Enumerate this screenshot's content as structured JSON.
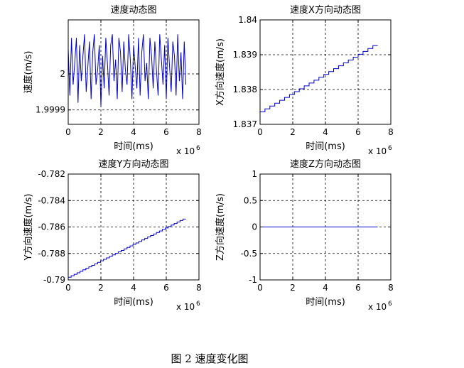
{
  "caption": "图 2 速度变化图",
  "chart_data": [
    {
      "type": "line",
      "title": "速度动态图",
      "xlabel": "时间(ms)",
      "ylabel": "速度(m/s)",
      "x_multiplier": "x 10",
      "x_exponent": "6",
      "xlim": [
        0,
        8
      ],
      "ylim": [
        1.99986,
        2.00015
      ],
      "xticks": [
        "0",
        "2",
        "4",
        "6",
        "8"
      ],
      "yticks": [
        {
          "value": 1.9999,
          "label": "1.9999"
        },
        {
          "value": 2.0,
          "label": "2"
        }
      ],
      "grid": true,
      "color": "#0000cc",
      "series": [
        {
          "x": [
            0,
            0.1,
            0.2,
            0.3,
            0.4,
            0.5,
            0.6,
            0.7,
            0.8,
            0.9,
            1.0,
            1.1,
            1.2,
            1.3,
            1.4,
            1.5,
            1.6,
            1.7,
            1.8,
            1.9,
            2.0,
            2.1,
            2.2,
            2.3,
            2.4,
            2.5,
            2.6,
            2.7,
            2.8,
            2.9,
            3.0,
            3.1,
            3.2,
            3.3,
            3.4,
            3.5,
            3.6,
            3.7,
            3.8,
            3.9,
            4.0,
            4.1,
            4.2,
            4.3,
            4.4,
            4.5,
            4.6,
            4.7,
            4.8,
            4.9,
            5.0,
            5.1,
            5.2,
            5.3,
            5.4,
            5.5,
            5.6,
            5.7,
            5.8,
            5.9,
            6.0,
            6.1,
            6.2,
            6.3,
            6.4,
            6.5,
            6.6,
            6.7,
            6.8,
            6.9,
            7.0,
            7.1,
            7.2
          ],
          "y": [
            2.00007,
            1.99994,
            2.0001,
            1.99997,
            2.00003,
            2.0001,
            1.99992,
            2.00008,
            1.99998,
            2.00005,
            2.00011,
            1.99995,
            2.00002,
            2.00009,
            1.99993,
            2.00006,
            2.00011,
            1.99997,
            2.00001,
            2.00008,
            1.99991,
            2.00005,
            1.99996,
            2.0001,
            2.00003,
            1.99994,
            2.00008,
            2.00011,
            1.99998,
            2.00004,
            1.99993,
            2.0001,
            2.00006,
            1.99995,
            2.00009,
            2.00001,
            1.99997,
            2.00011,
            2.00004,
            1.99993,
            2.00008,
            2.00002,
            1.99996,
            2.0001,
            1.99994,
            2.00006,
            2.00011,
            1.99998,
            2.00003,
            1.99993,
            2.0001,
            2.00005,
            1.99996,
            2.00009,
            2.00001,
            1.99994,
            2.00011,
            2.00004,
            1.99997,
            2.00008,
            1.99993,
            2.0001,
            2.00002,
            1.99995,
            2.00009,
            2.00005,
            1.99994,
            2.00011,
            1.99998,
            2.00006,
            1.99993,
            2.00009,
            1.99997
          ]
        }
      ]
    },
    {
      "type": "line",
      "title": "速度X方向动态图",
      "xlabel": "时间(ms)",
      "ylabel": "X方向速度(m/s)",
      "x_multiplier": "x 10",
      "x_exponent": "6",
      "xlim": [
        0,
        8
      ],
      "ylim": [
        1.837,
        1.84
      ],
      "xticks": [
        "0",
        "2",
        "4",
        "6",
        "8"
      ],
      "yticks": [
        {
          "value": 1.837,
          "label": "1.837"
        },
        {
          "value": 1.838,
          "label": "1.838"
        },
        {
          "value": 1.839,
          "label": "1.839"
        },
        {
          "value": 1.84,
          "label": "1.84"
        }
      ],
      "grid": true,
      "color": "#0000cc",
      "series": [
        {
          "x": [
            0,
            7.2
          ],
          "y": [
            1.83736,
            1.83926
          ],
          "steps": 24
        }
      ]
    },
    {
      "type": "line",
      "title": "速度Y方向动态图",
      "xlabel": "时间(ms)",
      "ylabel": "Y方向速度(m/s)",
      "x_multiplier": "x 10",
      "x_exponent": "6",
      "xlim": [
        0,
        8
      ],
      "ylim": [
        -0.79,
        -0.782
      ],
      "xticks": [
        "0",
        "2",
        "4",
        "6",
        "8"
      ],
      "yticks": [
        {
          "value": -0.79,
          "label": "-0.79"
        },
        {
          "value": -0.788,
          "label": "-0.788"
        },
        {
          "value": -0.786,
          "label": "-0.786"
        },
        {
          "value": -0.784,
          "label": "-0.784"
        },
        {
          "value": -0.782,
          "label": "-0.782"
        }
      ],
      "grid": true,
      "color": "#0000cc",
      "series": [
        {
          "x": [
            0,
            7.2
          ],
          "y": [
            -0.7898,
            -0.7854
          ],
          "steps": 40
        }
      ]
    },
    {
      "type": "line",
      "title": "速度Z方向动态图",
      "xlabel": "时间(ms)",
      "ylabel": "Z方向速度(m/s)",
      "x_multiplier": "x 10",
      "x_exponent": "6",
      "xlim": [
        0,
        8
      ],
      "ylim": [
        -1,
        1
      ],
      "xticks": [
        "0",
        "2",
        "4",
        "6",
        "8"
      ],
      "yticks": [
        {
          "value": -1,
          "label": "-1"
        },
        {
          "value": -0.5,
          "label": "-0.5"
        },
        {
          "value": 0,
          "label": "0"
        },
        {
          "value": 0.5,
          "label": "0.5"
        },
        {
          "value": 1,
          "label": "1"
        }
      ],
      "grid": true,
      "color": "#0000cc",
      "series": [
        {
          "x": [
            0,
            7.2
          ],
          "y": [
            0,
            0
          ]
        }
      ]
    }
  ]
}
